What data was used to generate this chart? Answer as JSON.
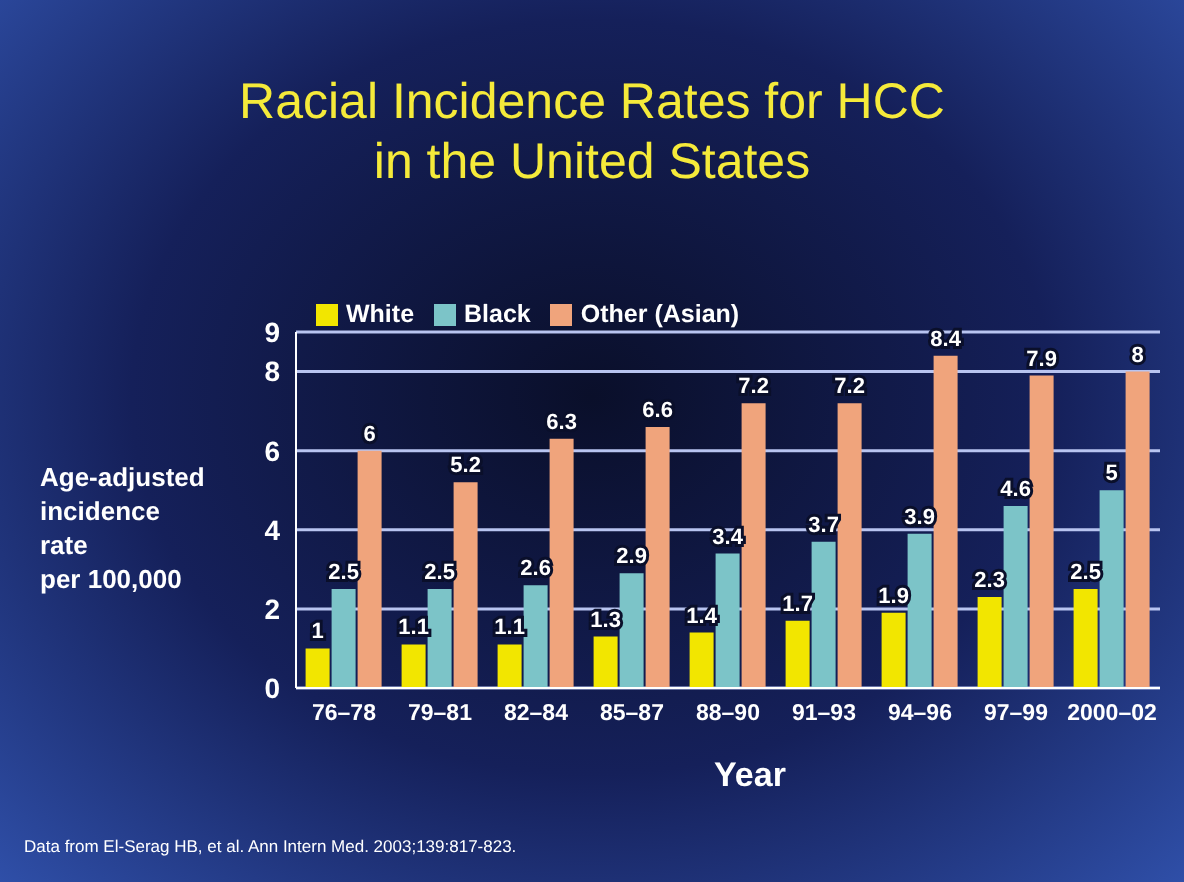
{
  "chart_data": {
    "type": "bar",
    "title": "Racial Incidence Rates for HCC\nin the United States",
    "xlabel": "Year",
    "ylabel": "Age-adjusted\nincidence\nrate\nper 100,000",
    "categories": [
      "76–78",
      "79–81",
      "82–84",
      "85–87",
      "88–90",
      "91–93",
      "94–96",
      "97–99",
      "2000–02"
    ],
    "series": [
      {
        "name": "White",
        "color": "#f2e600",
        "values": [
          1,
          1.1,
          1.1,
          1.3,
          1.4,
          1.7,
          1.9,
          2.3,
          2.5
        ]
      },
      {
        "name": "Black",
        "color": "#7cc4c8",
        "values": [
          2.5,
          2.5,
          2.6,
          2.9,
          3.4,
          3.7,
          3.9,
          4.6,
          5
        ]
      },
      {
        "name": "Other (Asian)",
        "color": "#f0a47c",
        "values": [
          6,
          5.2,
          6.3,
          6.6,
          7.2,
          7.2,
          8.4,
          7.9,
          8
        ]
      }
    ],
    "ylim": [
      0,
      9
    ],
    "yticks": [
      0,
      2,
      4,
      6,
      8,
      9
    ],
    "grid": "y",
    "legend": "top left",
    "data_labels": true,
    "annotations": [
      "Data from El-Serag HB, et al. Ann Intern Med. 2003;139:817-823."
    ]
  }
}
